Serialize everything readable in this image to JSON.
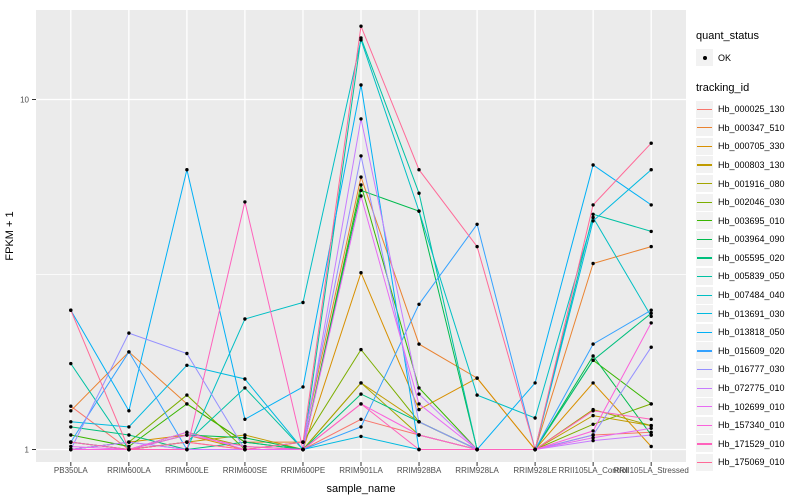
{
  "chart_data": {
    "type": "line",
    "title": "",
    "xlabel": "sample_name",
    "ylabel": "FPKM + 1",
    "y_scale": "log10",
    "y_ticks": [
      1,
      10
    ],
    "y_tick_labels": [
      "1",
      "10"
    ],
    "y_minor_ticks": [
      3.162
    ],
    "ylim": [
      0.93,
      18.5
    ],
    "grid": "on",
    "legend_position": "right",
    "point_shape": "filled-circle",
    "point_color": "#000000",
    "categories": [
      "PB350LA",
      "RRIM600LA",
      "RRIM600LE",
      "RRIM600SE",
      "RRIM600PE",
      "RRIM901LA",
      "RRIM928BA",
      "RRIM928LA",
      "RRIM928LE",
      "RRII105LA_Control",
      "RRII105LA_Stressed"
    ],
    "series": [
      {
        "name": "Hb_000025_130",
        "color": "#F8766D",
        "values": [
          1.33,
          1.0,
          1.05,
          1.0,
          1.0,
          1.22,
          1.1,
          1.0,
          1.0,
          1.1,
          1.12
        ]
      },
      {
        "name": "Hb_000347_510",
        "color": "#EA8331",
        "values": [
          1.29,
          1.9,
          1.35,
          1.05,
          1.05,
          6.0,
          2.0,
          1.6,
          1.0,
          3.4,
          3.8
        ]
      },
      {
        "name": "Hb_000705_330",
        "color": "#D89000",
        "values": [
          1.0,
          1.05,
          1.1,
          1.0,
          1.0,
          3.2,
          1.3,
          1.6,
          1.0,
          1.55,
          1.02
        ]
      },
      {
        "name": "Hb_000803_130",
        "color": "#C09B00",
        "values": [
          1.0,
          1.0,
          1.05,
          1.1,
          1.0,
          1.55,
          1.2,
          1.0,
          1.0,
          1.25,
          1.17
        ]
      },
      {
        "name": "Hb_001916_080",
        "color": "#A3A500",
        "values": [
          1.05,
          1.0,
          1.12,
          1.02,
          1.0,
          1.55,
          1.1,
          1.0,
          1.0,
          1.3,
          1.17
        ]
      },
      {
        "name": "Hb_002046_030",
        "color": "#7CAE00",
        "values": [
          1.0,
          1.05,
          1.43,
          1.0,
          1.05,
          1.93,
          1.2,
          1.0,
          1.0,
          1.18,
          1.35
        ]
      },
      {
        "name": "Hb_003695_010",
        "color": "#39B600",
        "values": [
          1.1,
          1.02,
          1.35,
          1.05,
          1.0,
          5.7,
          1.5,
          1.0,
          1.0,
          1.8,
          1.35
        ]
      },
      {
        "name": "Hb_003964_090",
        "color": "#00BB4E",
        "values": [
          1.05,
          1.0,
          1.1,
          1.08,
          1.0,
          5.5,
          4.8,
          1.0,
          1.0,
          1.85,
          1.1
        ]
      },
      {
        "name": "Hb_005595_020",
        "color": "#00BF7D",
        "values": [
          1.16,
          1.1,
          1.0,
          1.05,
          1.0,
          1.44,
          1.2,
          1.0,
          1.0,
          1.8,
          2.45
        ]
      },
      {
        "name": "Hb_005839_050",
        "color": "#00C1A3",
        "values": [
          1.76,
          1.0,
          1.05,
          1.5,
          1.0,
          15.0,
          5.4,
          1.0,
          1.0,
          4.7,
          4.2
        ]
      },
      {
        "name": "Hb_007484_040",
        "color": "#00BFC4",
        "values": [
          1.0,
          1.05,
          1.0,
          2.36,
          2.63,
          14.8,
          4.8,
          1.43,
          1.23,
          4.6,
          2.4
        ]
      },
      {
        "name": "Hb_013691_030",
        "color": "#00BAE0",
        "values": [
          1.2,
          1.16,
          1.74,
          1.59,
          1.0,
          1.09,
          1.0,
          1.0,
          1.0,
          4.5,
          6.3
        ]
      },
      {
        "name": "Hb_013818_050",
        "color": "#00B0F6",
        "values": [
          2.5,
          1.29,
          6.3,
          1.22,
          1.51,
          11.0,
          1.0,
          1.0,
          1.55,
          6.5,
          5.0
        ]
      },
      {
        "name": "Hb_015609_020",
        "color": "#35A2FF",
        "values": [
          1.05,
          1.9,
          1.0,
          1.0,
          1.0,
          1.16,
          2.6,
          4.4,
          1.0,
          2.0,
          2.5
        ]
      },
      {
        "name": "Hb_016777_030",
        "color": "#9590FF",
        "values": [
          1.0,
          2.15,
          1.88,
          1.0,
          1.05,
          6.9,
          1.2,
          1.0,
          1.0,
          1.1,
          1.96
        ]
      },
      {
        "name": "Hb_072775_010",
        "color": "#C77CFF",
        "values": [
          1.0,
          1.05,
          1.0,
          1.0,
          1.0,
          8.8,
          1.44,
          1.0,
          1.0,
          1.06,
          1.1
        ]
      },
      {
        "name": "Hb_102699_010",
        "color": "#E76BF3",
        "values": [
          1.02,
          1.0,
          1.12,
          1.0,
          1.0,
          5.3,
          1.35,
          1.0,
          1.0,
          1.08,
          1.15
        ]
      },
      {
        "name": "Hb_157340_010",
        "color": "#FA62DB",
        "values": [
          1.0,
          1.0,
          1.1,
          1.02,
          1.0,
          1.35,
          1.1,
          1.0,
          1.0,
          1.13,
          2.3
        ]
      },
      {
        "name": "Hb_171529_010",
        "color": "#FF62BC",
        "values": [
          1.05,
          1.0,
          1.0,
          5.1,
          1.0,
          1.35,
          1.0,
          1.0,
          1.0,
          1.29,
          1.22
        ]
      },
      {
        "name": "Hb_175069_010",
        "color": "#FF6A98",
        "values": [
          2.5,
          1.0,
          1.05,
          1.0,
          1.05,
          16.2,
          6.3,
          3.8,
          1.0,
          5.0,
          7.5
        ]
      }
    ],
    "legend": {
      "quant_status": {
        "title": "quant_status",
        "items": [
          {
            "label": "OK",
            "symbol": "point"
          }
        ]
      },
      "tracking_id": {
        "title": "tracking_id"
      }
    },
    "colors": {
      "panel_bg": "#EBEBEB",
      "grid": "#FFFFFF",
      "legend_key_bg": "#F2F2F2",
      "tick": "#333333",
      "tick_label": "#4D4D4D"
    }
  }
}
